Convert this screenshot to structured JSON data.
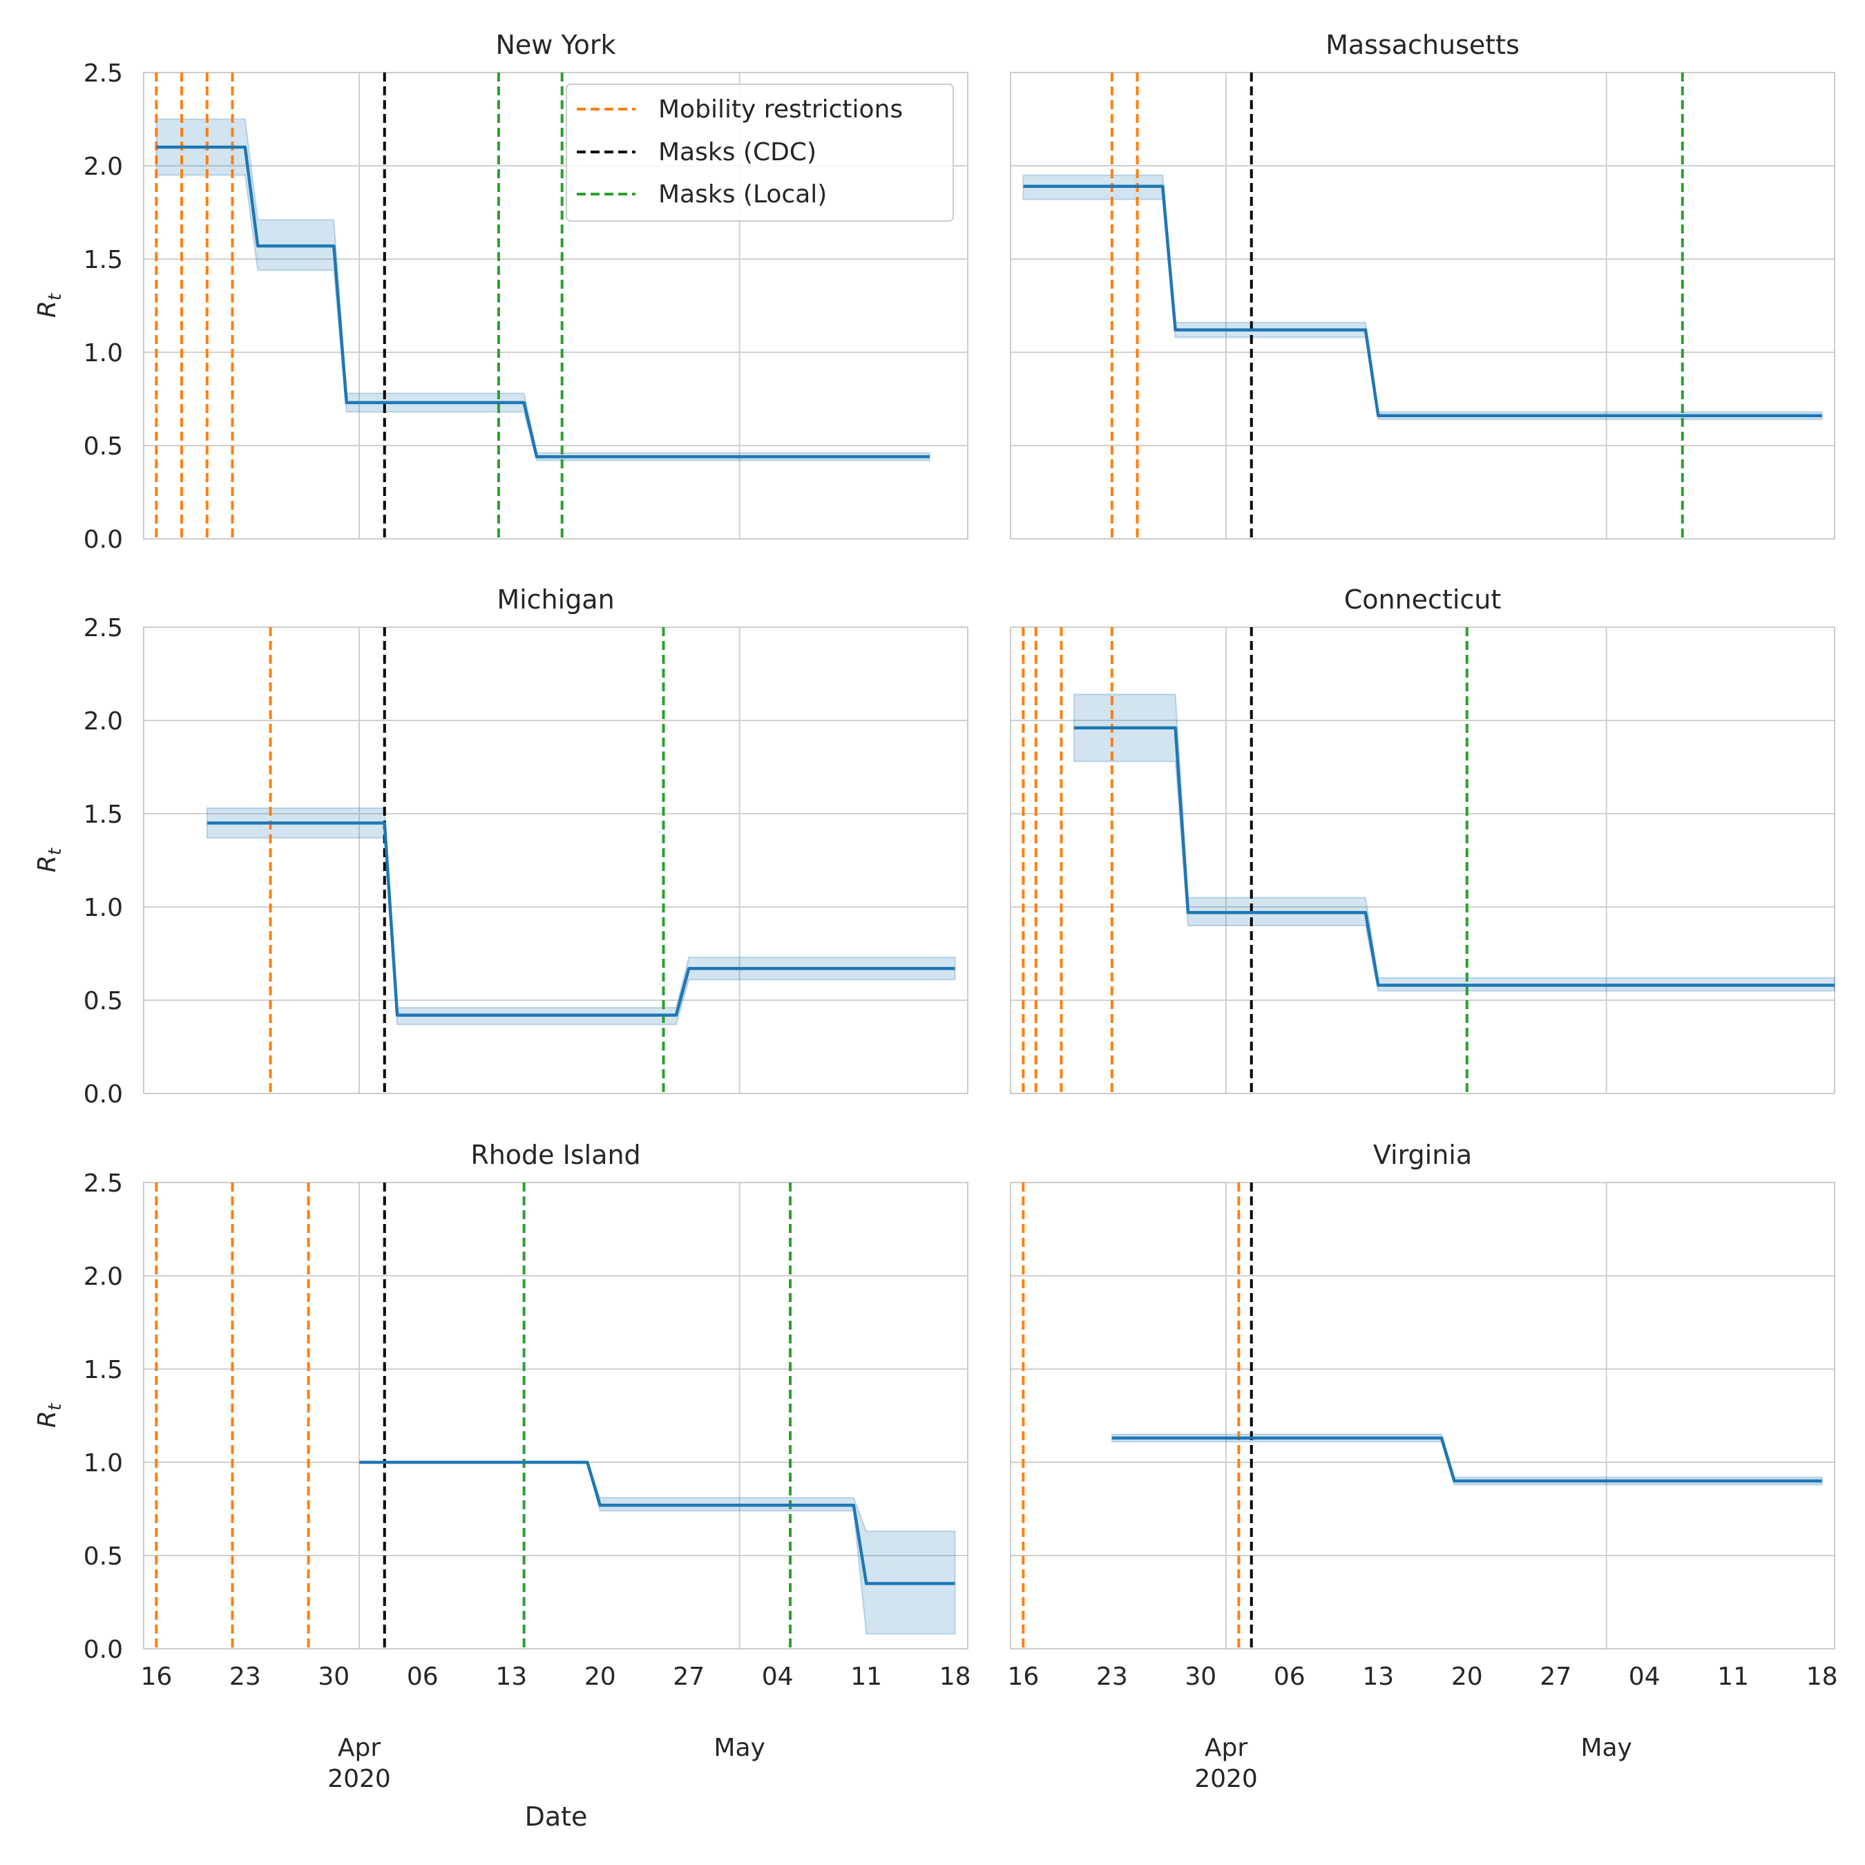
{
  "figure": {
    "xlabel": "Date",
    "ylabel": "R",
    "ylabel_sub": "t",
    "legend": [
      {
        "label": "Mobility restrictions",
        "color": "#ff7f0e"
      },
      {
        "label": "Masks (CDC)",
        "color": "#000000"
      },
      {
        "label": "Masks (Local)",
        "color": "#2ca02c"
      }
    ],
    "colors": {
      "line": "#1f77b4",
      "band": "#1f77b4",
      "grid": "#d0d0d0",
      "spine": "#cccccc",
      "mobility": "#ff7f0e",
      "masks_cdc": "#000000",
      "masks_local": "#2ca02c"
    },
    "x_ticks": [
      {
        "day": 0,
        "label": "16"
      },
      {
        "day": 7,
        "label": "23"
      },
      {
        "day": 14,
        "label": "30"
      },
      {
        "day": 21,
        "label": "06"
      },
      {
        "day": 28,
        "label": "13"
      },
      {
        "day": 35,
        "label": "20"
      },
      {
        "day": 42,
        "label": "27"
      },
      {
        "day": 49,
        "label": "04"
      },
      {
        "day": 56,
        "label": "11"
      },
      {
        "day": 63,
        "label": "18"
      }
    ],
    "month_ticks": [
      {
        "day": 16,
        "label": "Apr",
        "sublabel": "2020"
      },
      {
        "day": 46,
        "label": "May",
        "sublabel": ""
      }
    ],
    "y_ticks": [
      "0.0",
      "0.5",
      "1.0",
      "1.5",
      "2.0",
      "2.5"
    ]
  },
  "chart_data": [
    {
      "type": "line",
      "title": "New York",
      "x_unit": "days since 2020-03-16",
      "xlim": [
        -1,
        64
      ],
      "ylim": [
        0,
        2.5
      ],
      "series": [
        {
          "name": "Rt",
          "x": [
            0,
            7,
            8,
            14,
            15,
            29,
            30,
            61
          ],
          "y": [
            2.1,
            2.1,
            1.57,
            1.57,
            0.73,
            0.73,
            0.44,
            0.44
          ],
          "lower": [
            1.95,
            1.95,
            1.44,
            1.44,
            0.68,
            0.68,
            0.42,
            0.42
          ],
          "upper": [
            2.25,
            2.25,
            1.71,
            1.71,
            0.78,
            0.78,
            0.46,
            0.46
          ]
        }
      ],
      "mobility": [
        0,
        2,
        4,
        6
      ],
      "masks_cdc": [
        18
      ],
      "masks_local": [
        27,
        32
      ],
      "show_legend": true
    },
    {
      "type": "line",
      "title": "Massachusetts",
      "x_unit": "days since 2020-03-16",
      "xlim": [
        -1,
        64
      ],
      "ylim": [
        0,
        2.5
      ],
      "series": [
        {
          "name": "Rt",
          "x": [
            0,
            11,
            12,
            27,
            28,
            63
          ],
          "y": [
            1.89,
            1.89,
            1.12,
            1.12,
            0.66,
            0.66
          ],
          "lower": [
            1.82,
            1.82,
            1.08,
            1.08,
            0.64,
            0.64
          ],
          "upper": [
            1.95,
            1.95,
            1.16,
            1.16,
            0.68,
            0.68
          ]
        }
      ],
      "mobility": [
        7,
        9
      ],
      "masks_cdc": [
        18
      ],
      "masks_local": [
        52
      ],
      "show_legend": false
    },
    {
      "type": "line",
      "title": "Michigan",
      "x_unit": "days since 2020-03-16",
      "xlim": [
        -1,
        64
      ],
      "ylim": [
        0,
        2.5
      ],
      "series": [
        {
          "name": "Rt",
          "x": [
            4,
            18,
            19,
            41,
            42,
            63
          ],
          "y": [
            1.45,
            1.45,
            0.42,
            0.42,
            0.67,
            0.67
          ],
          "lower": [
            1.37,
            1.37,
            0.37,
            0.37,
            0.61,
            0.61
          ],
          "upper": [
            1.53,
            1.53,
            0.46,
            0.46,
            0.73,
            0.73
          ]
        }
      ],
      "mobility": [
        9
      ],
      "masks_cdc": [
        18
      ],
      "masks_local": [
        40
      ],
      "show_legend": false
    },
    {
      "type": "line",
      "title": "Connecticut",
      "x_unit": "days since 2020-03-16",
      "xlim": [
        -1,
        64
      ],
      "ylim": [
        0,
        2.5
      ],
      "series": [
        {
          "name": "Rt",
          "x": [
            4,
            12,
            13,
            27,
            28,
            64
          ],
          "y": [
            1.96,
            1.96,
            0.97,
            0.97,
            0.58,
            0.58
          ],
          "lower": [
            1.78,
            1.78,
            0.9,
            0.9,
            0.55,
            0.55
          ],
          "upper": [
            2.14,
            2.14,
            1.05,
            1.05,
            0.62,
            0.62
          ]
        }
      ],
      "mobility": [
        0,
        1,
        3,
        7
      ],
      "masks_cdc": [
        18
      ],
      "masks_local": [
        35
      ],
      "show_legend": false
    },
    {
      "type": "line",
      "title": "Rhode Island",
      "x_unit": "days since 2020-03-16",
      "xlim": [
        -1,
        64
      ],
      "ylim": [
        0,
        2.5
      ],
      "series": [
        {
          "name": "Rt",
          "x": [
            16,
            34,
            35,
            55,
            56,
            63
          ],
          "y": [
            1.0,
            1.0,
            0.77,
            0.77,
            0.35,
            0.35
          ],
          "lower": [
            1.0,
            1.0,
            0.74,
            0.74,
            0.08,
            0.08
          ],
          "upper": [
            1.0,
            1.0,
            0.81,
            0.81,
            0.63,
            0.63
          ]
        }
      ],
      "mobility": [
        0,
        6,
        12
      ],
      "masks_cdc": [
        18
      ],
      "masks_local": [
        29,
        50
      ],
      "show_legend": false
    },
    {
      "type": "line",
      "title": "Virginia",
      "x_unit": "days since 2020-03-16",
      "xlim": [
        -1,
        64
      ],
      "ylim": [
        0,
        2.5
      ],
      "series": [
        {
          "name": "Rt",
          "x": [
            7,
            33,
            34,
            63
          ],
          "y": [
            1.13,
            1.13,
            0.9,
            0.9
          ],
          "lower": [
            1.11,
            1.11,
            0.88,
            0.88
          ],
          "upper": [
            1.15,
            1.15,
            0.92,
            0.92
          ]
        }
      ],
      "mobility": [
        0,
        17
      ],
      "masks_cdc": [
        18
      ],
      "masks_local": [],
      "show_legend": false
    }
  ]
}
